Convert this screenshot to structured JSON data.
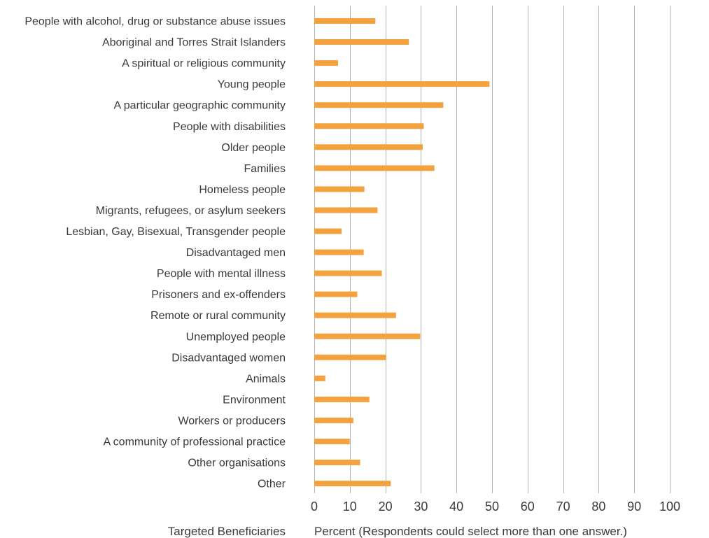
{
  "chart_data": {
    "type": "bar",
    "orientation": "horizontal",
    "title": "",
    "ylabel": "Targeted Beneficiaries",
    "xlabel": "Percent (Respondents could select more than one answer.)",
    "xlim": [
      0,
      100
    ],
    "x_ticks": [
      0,
      10,
      20,
      30,
      40,
      50,
      60,
      70,
      80,
      90,
      100
    ],
    "grid": true,
    "bar_color": "#F4A23E",
    "categories": [
      "People with alcohol, drug or substance abuse issues",
      "Aboriginal and Torres Strait Islanders",
      "A spiritual or religious community",
      "Young people",
      "A particular geographic community",
      "People with disabilities",
      "Older people",
      "Families",
      "Homeless people",
      "Migrants, refugees, or asylum seekers",
      "Lesbian, Gay, Bisexual, Transgender people",
      "Disadvantaged men",
      "People with mental illness",
      "Prisoners and ex-offenders",
      "Remote or rural community",
      "Unemployed people",
      "Disadvantaged women",
      "Animals",
      "Environment",
      "Workers or producers",
      "A community of professional practice",
      "Other organisations",
      "Other"
    ],
    "values": [
      17.2,
      26.6,
      6.7,
      49.3,
      36.3,
      30.8,
      30.5,
      33.8,
      14.1,
      17.8,
      7.7,
      13.9,
      19.0,
      12.1,
      23.0,
      29.8,
      20.2,
      3.1,
      15.5,
      11.0,
      10.0,
      12.9,
      21.5
    ]
  }
}
